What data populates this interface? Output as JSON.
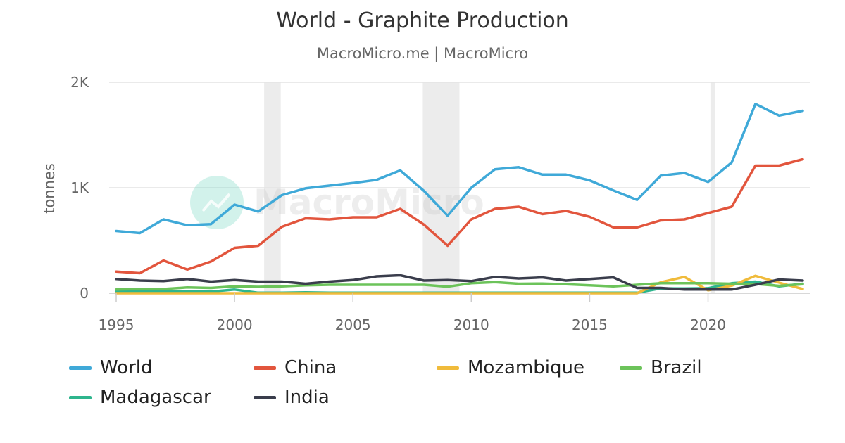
{
  "header": {
    "title": "World - Graphite Production",
    "subtitle": "MacroMicro.me | MacroMicro"
  },
  "watermark": "MacroMicro",
  "chart_data": {
    "type": "line",
    "title": "World - Graphite Production",
    "subtitle": "MacroMicro.me | MacroMicro",
    "xlabel": "",
    "ylabel": "tonnes",
    "xlim": [
      1995,
      2024
    ],
    "ylim": [
      0,
      2000
    ],
    "x_ticks": [
      1995,
      2000,
      2005,
      2010,
      2015,
      2020
    ],
    "x_tick_labels": [
      "1995",
      "2000",
      "2005",
      "2010",
      "2015",
      "2020"
    ],
    "y_ticks": [
      0,
      1000,
      2000
    ],
    "y_tick_labels": [
      "0",
      "1K",
      "2K"
    ],
    "grid": "horizontal",
    "recession_bands": [
      [
        2001.25,
        2001.95
      ],
      [
        2007.95,
        2009.5
      ],
      [
        2020.1,
        2020.3
      ]
    ],
    "legend_position": "bottom",
    "x": [
      1995,
      1996,
      1997,
      1998,
      1999,
      2000,
      2001,
      2002,
      2003,
      2004,
      2005,
      2006,
      2007,
      2008,
      2009,
      2010,
      2011,
      2012,
      2013,
      2014,
      2015,
      2016,
      2017,
      2018,
      2019,
      2020,
      2021,
      2022,
      2023,
      2024
    ],
    "series": [
      {
        "name": "World",
        "color": "#3fa9d8",
        "values": [
          590,
          570,
          700,
          645,
          655,
          840,
          775,
          930,
          995,
          1020,
          1045,
          1075,
          1165,
          970,
          735,
          1000,
          1175,
          1195,
          1125,
          1125,
          1070,
          975,
          885,
          1115,
          1140,
          1055,
          1240,
          1795,
          1685,
          1730
        ]
      },
      {
        "name": "China",
        "color": "#e2553d",
        "values": [
          205,
          190,
          310,
          225,
          300,
          430,
          450,
          630,
          710,
          700,
          720,
          720,
          800,
          650,
          450,
          700,
          800,
          820,
          750,
          780,
          725,
          625,
          625,
          690,
          700,
          760,
          820,
          1210,
          1210,
          1270
        ]
      },
      {
        "name": "Mozambique",
        "color": "#f0bb3b",
        "values": [
          0,
          0,
          0,
          0,
          0,
          0,
          0,
          0,
          0,
          0,
          0,
          0,
          0,
          0,
          0,
          0,
          0,
          0,
          0,
          0,
          0,
          0,
          0,
          104,
          155,
          27,
          72,
          165,
          100,
          40
        ]
      },
      {
        "name": "Brazil",
        "color": "#6cc35a",
        "values": [
          35,
          40,
          40,
          55,
          50,
          65,
          60,
          65,
          75,
          80,
          80,
          80,
          80,
          80,
          62,
          95,
          105,
          90,
          92,
          85,
          75,
          65,
          80,
          95,
          95,
          95,
          90,
          87,
          70,
          85
        ]
      },
      {
        "name": "Madagascar",
        "color": "#2eb58d",
        "values": [
          15,
          15,
          15,
          20,
          15,
          35,
          5,
          5,
          8,
          5,
          5,
          5,
          5,
          5,
          5,
          5,
          5,
          5,
          5,
          5,
          5,
          5,
          5,
          46,
          45,
          47,
          95,
          110,
          65,
          90
        ]
      },
      {
        "name": "India",
        "color": "#3a3d4c",
        "values": [
          135,
          120,
          115,
          135,
          110,
          125,
          110,
          110,
          90,
          110,
          125,
          160,
          170,
          120,
          125,
          115,
          155,
          140,
          150,
          120,
          135,
          150,
          50,
          50,
          35,
          35,
          35,
          80,
          130,
          120
        ]
      }
    ]
  }
}
